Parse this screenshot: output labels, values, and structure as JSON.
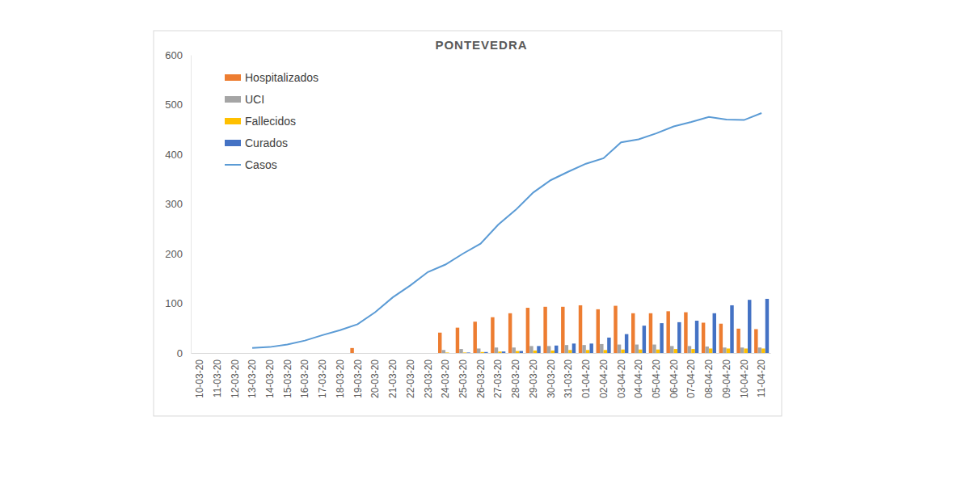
{
  "chart_data": {
    "type": "bar",
    "title": "PONTEVEDRA",
    "categories": [
      "10-03-20",
      "11-03-20",
      "12-03-20",
      "13-03-20",
      "14-03-20",
      "15-03-20",
      "16-03-20",
      "17-03-20",
      "18-03-20",
      "19-03-20",
      "20-03-20",
      "21-03-20",
      "22-03-20",
      "23-03-20",
      "24-03-20",
      "25-03-20",
      "26-03-20",
      "27-03-20",
      "28-03-20",
      "29-03-20",
      "30-03-20",
      "31-03-20",
      "01-04-20",
      "02-04-20",
      "03-04-20",
      "04-04-20",
      "05-04-20",
      "06-04-20",
      "07-04-20",
      "08-04-20",
      "09-04-20",
      "10-04-20",
      "11-04-20"
    ],
    "series": [
      {
        "name": "Hospitalizados",
        "type": "bar",
        "color": "#ed7d31",
        "values": [
          null,
          null,
          null,
          null,
          null,
          null,
          null,
          null,
          null,
          10,
          null,
          null,
          null,
          null,
          41,
          51,
          63,
          72,
          80,
          91,
          93,
          93,
          96,
          88,
          95,
          80,
          80,
          84,
          82,
          61,
          59,
          49,
          48
        ]
      },
      {
        "name": "UCI",
        "type": "bar",
        "color": "#a5a5a5",
        "values": [
          null,
          null,
          null,
          null,
          null,
          null,
          null,
          null,
          null,
          null,
          null,
          null,
          null,
          null,
          6,
          8,
          9,
          11,
          11,
          14,
          14,
          16,
          16,
          18,
          17,
          17,
          17,
          14,
          14,
          13,
          11,
          11,
          11
        ]
      },
      {
        "name": "Fallecidos",
        "type": "bar",
        "color": "#ffc000",
        "values": [
          null,
          null,
          null,
          null,
          null,
          null,
          null,
          null,
          null,
          null,
          null,
          null,
          null,
          null,
          1,
          1,
          2,
          3,
          4,
          5,
          5,
          6,
          6,
          6,
          7,
          7,
          7,
          8,
          8,
          9,
          9,
          9,
          9
        ]
      },
      {
        "name": "Curados",
        "type": "bar",
        "color": "#4472c4",
        "values": [
          null,
          null,
          null,
          null,
          null,
          null,
          null,
          null,
          null,
          null,
          null,
          null,
          null,
          null,
          null,
          1,
          2,
          3,
          4,
          14,
          15,
          19,
          19,
          31,
          38,
          55,
          60,
          62,
          65,
          80,
          96,
          107,
          109
        ]
      },
      {
        "name": "Casos",
        "type": "line",
        "color": "#5b9bd5",
        "values": [
          null,
          null,
          null,
          10,
          12,
          17,
          25,
          36,
          46,
          58,
          82,
          112,
          136,
          163,
          178,
          200,
          220,
          258,
          288,
          323,
          348,
          365,
          381,
          392,
          424,
          430,
          442,
          456,
          465,
          475,
          470,
          469,
          483
        ]
      }
    ],
    "ylim": [
      0,
      600
    ],
    "yticks": [
      0,
      100,
      200,
      300,
      400,
      500,
      600
    ],
    "grid": false,
    "legend": "upper left"
  }
}
